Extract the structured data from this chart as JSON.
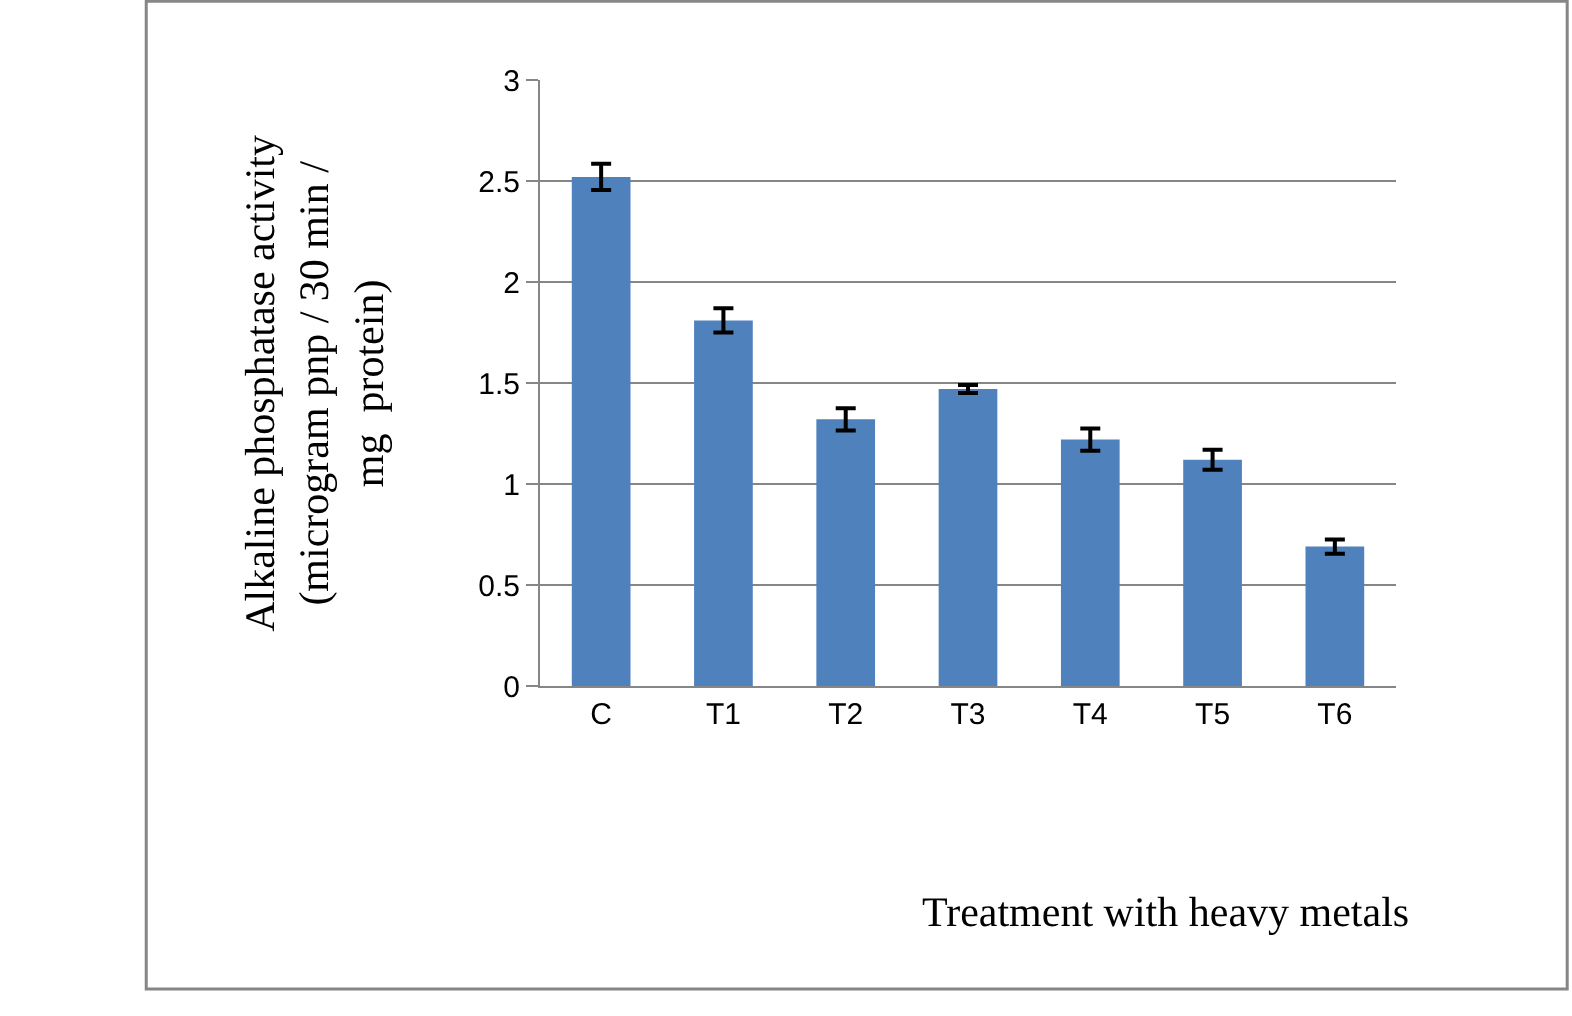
{
  "chart_data": {
    "type": "bar",
    "categories": [
      "C",
      "T1",
      "T2",
      "T3",
      "T4",
      "T5",
      "T6"
    ],
    "values": [
      2.52,
      1.81,
      1.32,
      1.47,
      1.22,
      1.12,
      0.69
    ],
    "errors": [
      0.065,
      0.06,
      0.055,
      0.02,
      0.055,
      0.05,
      0.035
    ],
    "color": "#4f81bd",
    "xlabel": "Treatment with heavy metals",
    "ylabel": "Alkaline phosphatase activity\n(microgram pnp / 30 min /\nmg  protein)",
    "ylim": [
      0,
      3
    ],
    "yticks": [
      0,
      0.5,
      1,
      1.5,
      2,
      2.5,
      3
    ],
    "grid": "y",
    "legend": false
  }
}
